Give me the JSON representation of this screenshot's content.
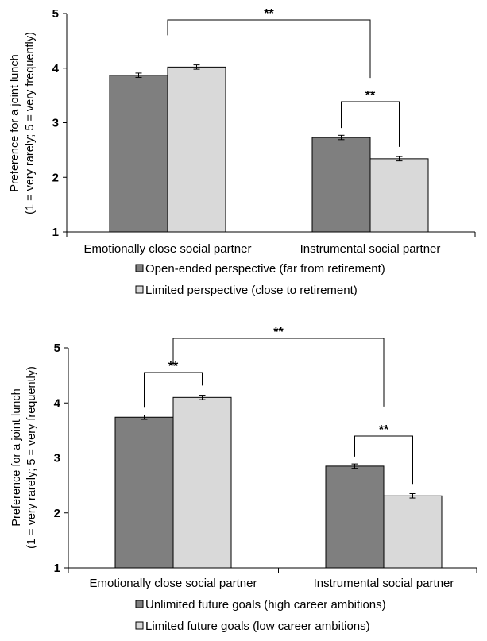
{
  "chart_data": [
    {
      "type": "bar",
      "categories": [
        "Emotionally close social partner",
        "Instrumental social partner"
      ],
      "ylabel_lines": [
        "Preference for a joint lunch",
        "(1 = very rarely; 5 = very frequently)"
      ],
      "ylim": [
        1,
        5
      ],
      "yticks": [
        "1",
        "2",
        "3",
        "4",
        "5"
      ],
      "series": [
        {
          "name": "Open-ended perspective (far from retirement)",
          "color": "#7f7f7f",
          "values": [
            3.87,
            2.73
          ],
          "errors": [
            0.04,
            0.04
          ]
        },
        {
          "name": "Limited perspective (close to retirement)",
          "color": "#d9d9d9",
          "values": [
            4.02,
            2.34
          ],
          "errors": [
            0.04,
            0.04
          ]
        }
      ],
      "annotations": [
        {
          "label": "**",
          "between": "Emotionally close social partner vs Instrumental social partner"
        },
        {
          "label": "**",
          "between": "Instrumental social partner: Open-ended perspective vs Limited perspective"
        }
      ],
      "legend_position": "bottom",
      "grid": false
    },
    {
      "type": "bar",
      "categories": [
        "Emotionally close social partner",
        "Instrumental social partner"
      ],
      "ylabel_lines": [
        "Preference for a joint lunch",
        "(1 = very rarely; 5 = very frequently)"
      ],
      "ylim": [
        1,
        5
      ],
      "yticks": [
        "1",
        "2",
        "3",
        "4",
        "5"
      ],
      "series": [
        {
          "name": "Unlimited future goals (high career ambitions)",
          "color": "#7f7f7f",
          "values": [
            3.74,
            2.85
          ],
          "errors": [
            0.04,
            0.04
          ]
        },
        {
          "name": "Limited future goals (low career ambitions)",
          "color": "#d9d9d9",
          "values": [
            4.1,
            2.31
          ],
          "errors": [
            0.04,
            0.04
          ]
        }
      ],
      "annotations": [
        {
          "label": "**",
          "between": "Emotionally close social partner vs Instrumental social partner"
        },
        {
          "label": "**",
          "between": "Emotionally close social partner: Unlimited future goals vs Limited future goals"
        },
        {
          "label": "**",
          "between": "Instrumental social partner: Unlimited future goals vs Limited future goals"
        }
      ],
      "legend_position": "bottom",
      "grid": false
    }
  ]
}
